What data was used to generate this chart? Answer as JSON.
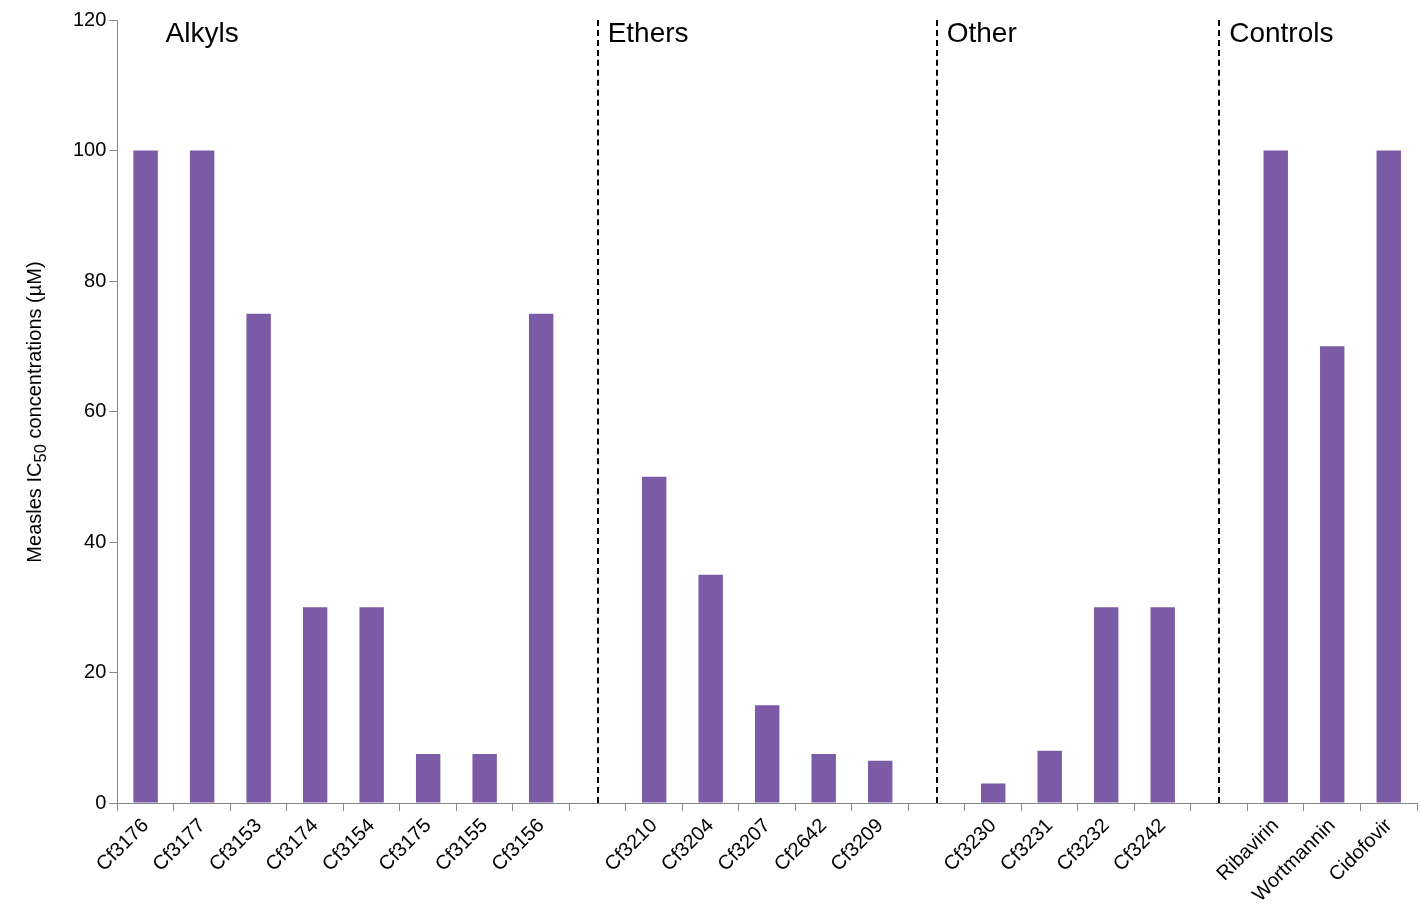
{
  "chart_data": {
    "type": "bar",
    "ylabel": "Measles IC$_{50}$ concentrations (µM)",
    "categories": [
      "Cf3176",
      "Cf3177",
      "Cf3153",
      "Cf3174",
      "Cf3154",
      "Cf3175",
      "Cf3155",
      "Cf3156",
      null,
      "Cf3210",
      "Cf3204",
      "Cf3207",
      "Cf2642",
      "Cf3209",
      null,
      "Cf3230",
      "Cf3231",
      "Cf3232",
      "Cf3242",
      null,
      "Ribavirin",
      "Wortmannin",
      "Cidofovir"
    ],
    "values": [
      100,
      100,
      75,
      30,
      30,
      7.5,
      7.5,
      75,
      null,
      50,
      35,
      15,
      7.5,
      6.5,
      null,
      3,
      8,
      30,
      30,
      null,
      100,
      70,
      100
    ],
    "color": "#7b5aa6",
    "ylim": [
      0,
      120
    ],
    "yticks": [
      0,
      20,
      40,
      60,
      80,
      100,
      120
    ],
    "grid": false,
    "legend": false,
    "annotations": [
      "Alkyls",
      "Ethers",
      "Other",
      "Controls"
    ]
  }
}
